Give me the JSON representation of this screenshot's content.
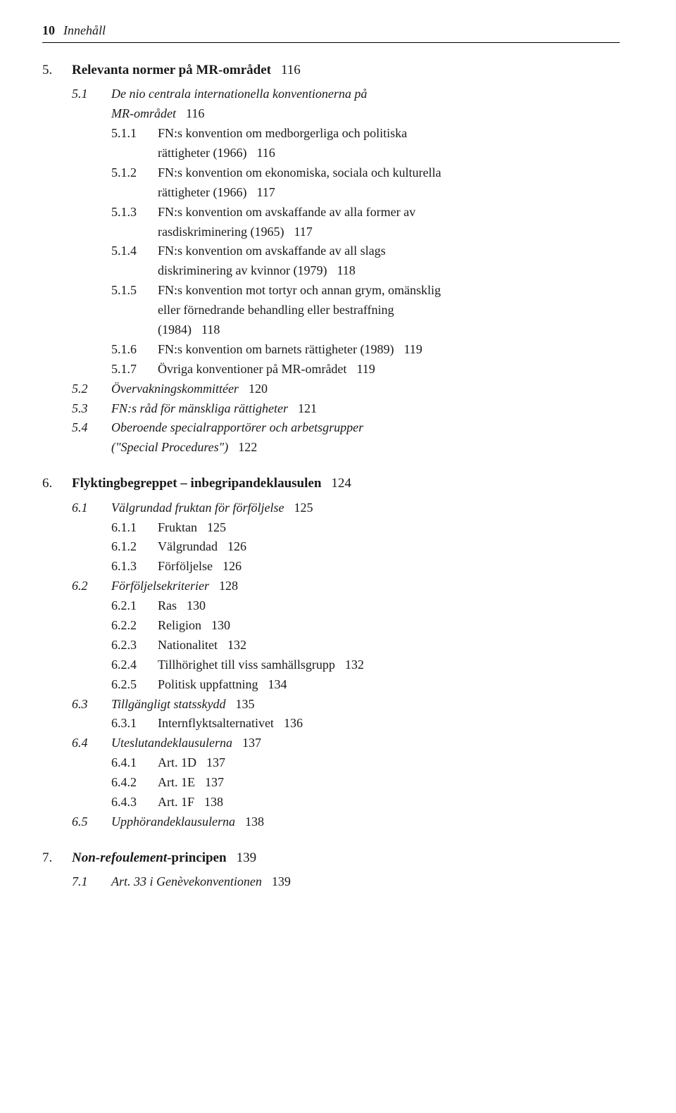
{
  "header": {
    "page": "10",
    "title": "Innehåll"
  },
  "chapters": [
    {
      "num": "5.",
      "title": "Relevanta normer på MR-området",
      "page": "116",
      "sections": [
        {
          "num": "5.1",
          "title": "De nio centrala internationella konventionerna på",
          "title_line2": "MR-området",
          "page": "116",
          "subsections": [
            {
              "num": "5.1.1",
              "lines": [
                "FN:s konvention om medborgerliga och politiska",
                "rättigheter (1966)"
              ],
              "page": "116"
            },
            {
              "num": "5.1.2",
              "lines": [
                "FN:s konvention om ekonomiska, sociala och kulturella",
                "rättigheter (1966)"
              ],
              "page": "117"
            },
            {
              "num": "5.1.3",
              "lines": [
                "FN:s konvention om avskaffande av alla former av",
                "rasdiskriminering (1965)"
              ],
              "page": "117"
            },
            {
              "num": "5.1.4",
              "lines": [
                "FN:s konvention om avskaffande av all slags",
                "diskriminering av kvinnor (1979)"
              ],
              "page": "118"
            },
            {
              "num": "5.1.5",
              "lines": [
                "FN:s konvention mot tortyr och annan grym, omänsklig",
                "eller förnedrande behandling eller bestraffning",
                "(1984)"
              ],
              "page": "118"
            },
            {
              "num": "5.1.6",
              "lines": [
                "FN:s konvention om barnets rättigheter (1989)"
              ],
              "page": "119"
            },
            {
              "num": "5.1.7",
              "lines": [
                "Övriga konventioner på MR-området"
              ],
              "page": "119"
            }
          ]
        },
        {
          "num": "5.2",
          "title": "Övervakningskommittéer",
          "page": "120"
        },
        {
          "num": "5.3",
          "title": "FN:s råd för mänskliga rättigheter",
          "page": "121"
        },
        {
          "num": "5.4",
          "title": "Oberoende specialrapportörer och arbetsgrupper",
          "title_line2": "(\"Special Procedures\")",
          "page": "122"
        }
      ]
    },
    {
      "num": "6.",
      "title": "Flyktingbegreppet – inbegripandeklausulen",
      "page": "124",
      "sections": [
        {
          "num": "6.1",
          "title": "Välgrundad fruktan för förföljelse",
          "page": "125",
          "subsections": [
            {
              "num": "6.1.1",
              "lines": [
                "Fruktan"
              ],
              "page": "125"
            },
            {
              "num": "6.1.2",
              "lines": [
                "Välgrundad"
              ],
              "page": "126"
            },
            {
              "num": "6.1.3",
              "lines": [
                "Förföljelse"
              ],
              "page": "126"
            }
          ]
        },
        {
          "num": "6.2",
          "title": "Förföljelsekriterier",
          "page": "128",
          "subsections": [
            {
              "num": "6.2.1",
              "lines": [
                "Ras"
              ],
              "page": "130"
            },
            {
              "num": "6.2.2",
              "lines": [
                "Religion"
              ],
              "page": "130"
            },
            {
              "num": "6.2.3",
              "lines": [
                "Nationalitet"
              ],
              "page": "132"
            },
            {
              "num": "6.2.4",
              "lines": [
                "Tillhörighet till viss samhällsgrupp"
              ],
              "page": "132"
            },
            {
              "num": "6.2.5",
              "lines": [
                "Politisk uppfattning"
              ],
              "page": "134"
            }
          ]
        },
        {
          "num": "6.3",
          "title": "Tillgängligt statsskydd",
          "page": "135",
          "subsections": [
            {
              "num": "6.3.1",
              "lines": [
                "Internflyktsalternativet"
              ],
              "page": "136"
            }
          ]
        },
        {
          "num": "6.4",
          "title": "Uteslutandeklausulerna",
          "page": "137",
          "subsections": [
            {
              "num": "6.4.1",
              "lines": [
                "Art. 1D"
              ],
              "page": "137"
            },
            {
              "num": "6.4.2",
              "lines": [
                "Art. 1E"
              ],
              "page": "137"
            },
            {
              "num": "6.4.3",
              "lines": [
                "Art. 1F"
              ],
              "page": "138"
            }
          ]
        },
        {
          "num": "6.5",
          "title": "Upphörandeklausulerna",
          "page": "138"
        }
      ]
    },
    {
      "num": "7.",
      "title_italic": "Non-refoulement",
      "title_rest": "-principen",
      "page": "139",
      "sections": [
        {
          "num": "7.1",
          "title": "Art. 33 i Genèvekonventionen",
          "page": "139"
        }
      ]
    }
  ]
}
